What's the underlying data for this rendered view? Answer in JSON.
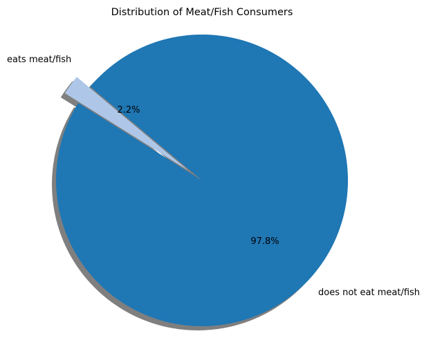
{
  "chart_data": {
    "type": "pie",
    "title": "Distribution of Meat/Fish Consumers",
    "categories": [
      "eats meat/fish",
      "does not eat meat/fish"
    ],
    "values": [
      2.2,
      97.8
    ],
    "percent_labels": [
      "2.2%",
      "97.8%"
    ],
    "colors": [
      "#aec7e8",
      "#1f77b4"
    ],
    "shadow_color": "#7f7f7f",
    "legend": false,
    "exploded_slice": "eats meat/fish",
    "start_angle_deg": 140
  }
}
